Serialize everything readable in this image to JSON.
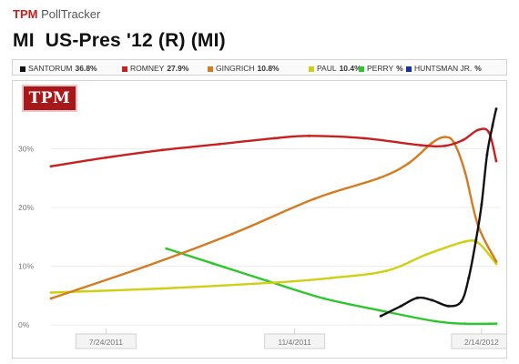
{
  "header": {
    "brand_tpm": "TPM",
    "brand_tracker": "PollTracker",
    "title": "MI  US-Pres '12 (R) (MI)"
  },
  "logo": {
    "text": "TPM"
  },
  "chart_data": {
    "type": "line",
    "title": "MI  US-Pres '12 (R) (MI)",
    "xlabel": "",
    "ylabel": "",
    "x_ticks": [
      "7/24/2011",
      "11/4/2011",
      "2/14/2012"
    ],
    "y_ticks": [
      "0%",
      "10%",
      "20%",
      "30%"
    ],
    "ylim": [
      0,
      40
    ],
    "xlim": [
      "2011-06-24",
      "2012-02-24"
    ],
    "grid": true,
    "legend_position": "top",
    "series": [
      {
        "name": "SANTORUM",
        "value_label": "36.8%",
        "color": "#111111",
        "x": [
          "2011-12-21",
          "2012-01-01",
          "2012-01-10",
          "2012-01-18",
          "2012-01-27",
          "2012-02-03",
          "2012-02-07",
          "2012-02-11",
          "2012-02-14",
          "2012-02-17",
          "2012-02-20",
          "2012-02-22"
        ],
        "y": [
          1.5,
          3.2,
          4.6,
          4.2,
          3.2,
          4.0,
          8.0,
          14.5,
          20.5,
          29.0,
          34.0,
          36.8
        ]
      },
      {
        "name": "ROMNEY",
        "value_label": "27.9%",
        "color": "#c8201e",
        "x": [
          "2011-06-24",
          "2011-07-24",
          "2011-08-24",
          "2011-09-24",
          "2011-10-24",
          "2011-11-12",
          "2011-12-12",
          "2012-01-12",
          "2012-01-25",
          "2012-02-04",
          "2012-02-12",
          "2012-02-18",
          "2012-02-22"
        ],
        "y": [
          27.0,
          28.5,
          29.8,
          30.8,
          31.8,
          32.2,
          31.8,
          30.6,
          30.5,
          31.5,
          33.2,
          32.8,
          27.9
        ]
      },
      {
        "name": "GINGRICH",
        "value_label": "10.8%",
        "color": "#d47b22",
        "x": [
          "2011-06-24",
          "2011-08-15",
          "2011-10-01",
          "2011-11-15",
          "2011-12-20",
          "2012-01-05",
          "2012-01-18",
          "2012-01-25",
          "2012-01-30",
          "2012-02-05",
          "2012-02-12",
          "2012-02-22"
        ],
        "y": [
          4.5,
          10.0,
          15.5,
          21.5,
          25.0,
          27.5,
          31.0,
          32.0,
          31.0,
          26.0,
          17.0,
          10.8
        ]
      },
      {
        "name": "PAUL",
        "value_label": "10.4%",
        "color": "#cfcf14",
        "x": [
          "2011-06-24",
          "2011-08-24",
          "2011-10-24",
          "2011-11-24",
          "2011-12-24",
          "2012-01-15",
          "2012-02-05",
          "2012-02-12",
          "2012-02-18",
          "2012-02-22"
        ],
        "y": [
          5.5,
          6.2,
          7.2,
          8.0,
          9.2,
          12.0,
          14.2,
          14.0,
          12.0,
          10.4
        ]
      },
      {
        "name": "PERRY",
        "value_label": "",
        "color": "#2ec62e",
        "x": [
          "2011-08-26",
          "2011-09-20",
          "2011-10-20",
          "2011-11-20",
          "2011-12-20",
          "2012-01-20",
          "2012-02-05",
          "2012-02-22"
        ],
        "y": [
          13.0,
          10.5,
          7.5,
          4.5,
          2.5,
          0.6,
          0.2,
          0.2
        ]
      },
      {
        "name": "HUNTSMAN JR.",
        "value_label": "",
        "color": "#1630a8",
        "x": [],
        "y": []
      }
    ]
  }
}
